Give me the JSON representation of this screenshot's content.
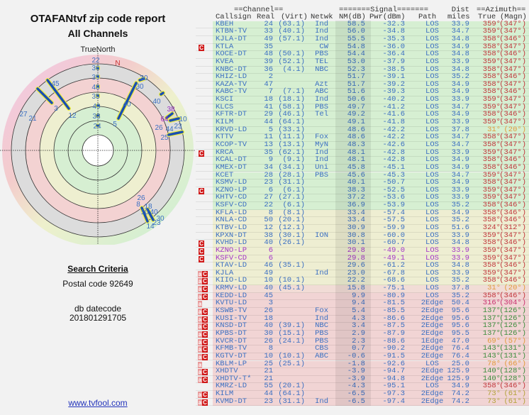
{
  "left": {
    "title": "OTAFANtvf zip code report",
    "subtitle": "All Channels",
    "radar_heading": "TrueNorth",
    "north_marker": "N",
    "radar_labels": [
      "22",
      "36",
      "39",
      "48",
      "35",
      "49",
      "33",
      "24",
      "45",
      "3",
      "12",
      "27",
      "21",
      "30",
      "30",
      "40",
      "5",
      "40",
      "38",
      "64",
      "10",
      "26",
      "44",
      "23",
      "25",
      "26",
      "8",
      "18",
      "10",
      "40",
      "30",
      "23",
      "14"
    ],
    "search_criteria_heading": "Search Criteria",
    "postal_code": "Postal code 92649",
    "db_datecode_label": "db datecode",
    "db_datecode": "201801291705",
    "site_link": "www.tvfool.com"
  },
  "table": {
    "group_headers": {
      "channel": "==Channel==",
      "signal": "=======Signal=======",
      "dist": "Dist",
      "azimuth": "==Azimuth=="
    },
    "columns": {
      "callsign": "Callsign",
      "real": "Real",
      "virt": "(Virt)",
      "netwk": "Netwk",
      "nm": "NM(dB)",
      "pwr": "Pwr(dBm)",
      "path": "Path",
      "miles": "miles",
      "true": "True",
      "magn": "(Magn)"
    },
    "colors": {
      "green_band": "#d6efd2",
      "yellow_band": "#eeeed2",
      "pink_band": "#f1d4d4",
      "text": "#3b6fc2",
      "azimuth_red": "#c0353a",
      "icon_red": "#d01818"
    },
    "rows": [
      {
        "icon": "",
        "call": "KBEH",
        "real": "24",
        "virt": "(63.1)",
        "net": "Ind",
        "nm": "58.5",
        "pwr": "-32.3",
        "path": "LOS",
        "dist": "33.9",
        "tru": "359°",
        "mag": "(347°)",
        "az": "red",
        "band": "g"
      },
      {
        "icon": "",
        "call": "KTBN-TV",
        "real": "33",
        "virt": "(40.1)",
        "net": "Ind",
        "nm": "56.0",
        "pwr": "-34.8",
        "path": "LOS",
        "dist": "34.7",
        "tru": "359°",
        "mag": "(347°)",
        "az": "red",
        "band": "g"
      },
      {
        "icon": "",
        "call": "KJLA-DT",
        "real": "49",
        "virt": "(57.1)",
        "net": "Ind",
        "nm": "55.5",
        "pwr": "-35.3",
        "path": "LOS",
        "dist": "34.8",
        "tru": "358°",
        "mag": "(346°)",
        "az": "red",
        "band": "g"
      },
      {
        "icon": "C",
        "call": "KTLA",
        "real": "35",
        "virt": "",
        "net": "CW",
        "nm": "54.8",
        "pwr": "-36.0",
        "path": "LOS",
        "dist": "34.9",
        "tru": "358°",
        "mag": "(347°)",
        "az": "red",
        "band": "g"
      },
      {
        "icon": "",
        "call": "KOCE-DT",
        "real": "48",
        "virt": "(50.1)",
        "net": "PBS",
        "nm": "54.4",
        "pwr": "-36.4",
        "path": "LOS",
        "dist": "34.8",
        "tru": "358°",
        "mag": "(346°)",
        "az": "red",
        "band": "g"
      },
      {
        "icon": "",
        "call": "KVEA",
        "real": "39",
        "virt": "(52.1)",
        "net": "TEL",
        "nm": "53.0",
        "pwr": "-37.9",
        "path": "LOS",
        "dist": "33.9",
        "tru": "359°",
        "mag": "(347°)",
        "az": "red",
        "band": "g"
      },
      {
        "icon": "",
        "call": "KNBC-DT",
        "real": "36",
        "virt": "(4.1)",
        "net": "NBC",
        "nm": "52.3",
        "pwr": "-38.5",
        "path": "LOS",
        "dist": "34.8",
        "tru": "358°",
        "mag": "(347°)",
        "az": "red",
        "band": "g"
      },
      {
        "icon": "",
        "call": "KHIZ-LD",
        "real": "2",
        "virt": "",
        "net": "",
        "nm": "51.7",
        "pwr": "-39.1",
        "path": "LOS",
        "dist": "35.2",
        "tru": "358°",
        "mag": "(346°)",
        "az": "red",
        "band": "g"
      },
      {
        "icon": "",
        "call": "KAZA-TV",
        "real": "47",
        "virt": "",
        "net": "Azt",
        "nm": "51.7",
        "pwr": "-39.2",
        "path": "LOS",
        "dist": "34.9",
        "tru": "358°",
        "mag": "(347°)",
        "az": "red",
        "band": "g"
      },
      {
        "icon": "",
        "call": "KABC-TV",
        "real": "7",
        "virt": "(7.1)",
        "net": "ABC",
        "nm": "51.6",
        "pwr": "-39.3",
        "path": "LOS",
        "dist": "34.9",
        "tru": "358°",
        "mag": "(346°)",
        "az": "red",
        "band": "g"
      },
      {
        "icon": "",
        "call": "KSCI",
        "real": "18",
        "virt": "(18.1)",
        "net": "Ind",
        "nm": "50.6",
        "pwr": "-40.2",
        "path": "LOS",
        "dist": "33.9",
        "tru": "359°",
        "mag": "(347°)",
        "az": "red",
        "band": "g"
      },
      {
        "icon": "",
        "call": "KLCS",
        "real": "41",
        "virt": "(58.1)",
        "net": "PBS",
        "nm": "49.7",
        "pwr": "-41.2",
        "path": "LOS",
        "dist": "34.7",
        "tru": "359°",
        "mag": "(347°)",
        "az": "red",
        "band": "g"
      },
      {
        "icon": "",
        "call": "KFTR-DT",
        "real": "29",
        "virt": "(46.1)",
        "net": "Tel",
        "nm": "49.2",
        "pwr": "-41.6",
        "path": "LOS",
        "dist": "34.9",
        "tru": "358°",
        "mag": "(346°)",
        "az": "red",
        "band": "g"
      },
      {
        "icon": "",
        "call": "KILM",
        "real": "44",
        "virt": "(64.1)",
        "net": "",
        "nm": "49.1",
        "pwr": "-41.8",
        "path": "LOS",
        "dist": "33.9",
        "tru": "359°",
        "mag": "(347°)",
        "az": "red",
        "band": "g"
      },
      {
        "icon": "",
        "call": "KRVD-LD",
        "real": "5",
        "virt": "(33.1)",
        "net": "",
        "nm": "48.6",
        "pwr": "-42.2",
        "path": "LOS",
        "dist": "37.8",
        "tru": "31°",
        "mag": "(20°)",
        "az": "orange",
        "band": "g"
      },
      {
        "icon": "",
        "call": "KTTV",
        "real": "11",
        "virt": "(11.1)",
        "net": "Fox",
        "nm": "48.6",
        "pwr": "-42.2",
        "path": "LOS",
        "dist": "34.7",
        "tru": "358°",
        "mag": "(347°)",
        "az": "red",
        "band": "g"
      },
      {
        "icon": "",
        "call": "KCOP-TV",
        "real": "13",
        "virt": "(13.1)",
        "net": "MyN",
        "nm": "48.3",
        "pwr": "-42.6",
        "path": "LOS",
        "dist": "34.7",
        "tru": "358°",
        "mag": "(347°)",
        "az": "red",
        "band": "g"
      },
      {
        "icon": "C",
        "call": "KRCA",
        "real": "35",
        "virt": "(62.1)",
        "net": "Ind",
        "nm": "48.1",
        "pwr": "-42.8",
        "path": "LOS",
        "dist": "33.9",
        "tru": "359°",
        "mag": "(347°)",
        "az": "red",
        "band": "g"
      },
      {
        "icon": "",
        "call": "KCAL-DT",
        "real": "9",
        "virt": "(9.1)",
        "net": "Ind",
        "nm": "48.1",
        "pwr": "-42.8",
        "path": "LOS",
        "dist": "34.9",
        "tru": "358°",
        "mag": "(346°)",
        "az": "red",
        "band": "g"
      },
      {
        "icon": "",
        "call": "KMEX-DT",
        "real": "34",
        "virt": "(34.1)",
        "net": "Uni",
        "nm": "45.8",
        "pwr": "-45.1",
        "path": "LOS",
        "dist": "34.9",
        "tru": "358°",
        "mag": "(346°)",
        "az": "red",
        "band": "g"
      },
      {
        "icon": "",
        "call": "KCET",
        "real": "28",
        "virt": "(28.1)",
        "net": "PBS",
        "nm": "45.6",
        "pwr": "-45.3",
        "path": "LOS",
        "dist": "34.7",
        "tru": "359°",
        "mag": "(347°)",
        "az": "red",
        "band": "g"
      },
      {
        "icon": "",
        "call": "KSMV-LD",
        "real": "23",
        "virt": "(31.1)",
        "net": "",
        "nm": "40.1",
        "pwr": "-50.7",
        "path": "LOS",
        "dist": "34.9",
        "tru": "358°",
        "mag": "(347°)",
        "az": "red",
        "band": "g"
      },
      {
        "icon": "C",
        "call": "KZNO-LP",
        "real": "6",
        "virt": "(6.1)",
        "net": "",
        "nm": "38.3",
        "pwr": "-52.5",
        "path": "LOS",
        "dist": "33.9",
        "tru": "359°",
        "mag": "(347°)",
        "az": "red",
        "band": "g"
      },
      {
        "icon": "",
        "call": "KHTV-CD",
        "real": "27",
        "virt": "(27.1)",
        "net": "",
        "nm": "37.2",
        "pwr": "-53.6",
        "path": "LOS",
        "dist": "33.9",
        "tru": "359°",
        "mag": "(347°)",
        "az": "red",
        "band": "g"
      },
      {
        "icon": "",
        "call": "KSFV-CD",
        "real": "22",
        "virt": "(6.1)",
        "net": "",
        "nm": "36.9",
        "pwr": "-53.9",
        "path": "LOS",
        "dist": "35.2",
        "tru": "358°",
        "mag": "(346°)",
        "az": "red",
        "band": "g"
      },
      {
        "icon": "",
        "call": "KFLA-LD",
        "real": "8",
        "virt": "(8.1)",
        "net": "",
        "nm": "33.4",
        "pwr": "-57.4",
        "path": "LOS",
        "dist": "34.9",
        "tru": "358°",
        "mag": "(346°)",
        "az": "red",
        "band": "y"
      },
      {
        "icon": "",
        "call": "KNLA-CD",
        "real": "50",
        "virt": "(20.1)",
        "net": "",
        "nm": "33.4",
        "pwr": "-57.5",
        "path": "LOS",
        "dist": "35.2",
        "tru": "358°",
        "mag": "(346°)",
        "az": "red",
        "band": "y"
      },
      {
        "icon": "",
        "call": "KTBV-LD",
        "real": "12",
        "virt": "(12.1)",
        "net": "",
        "nm": "30.9",
        "pwr": "-59.9",
        "path": "LOS",
        "dist": "51.6",
        "tru": "324°",
        "mag": "(312°)",
        "az": "red",
        "band": "y"
      },
      {
        "icon": "",
        "call": "KPXN-DT",
        "real": "38",
        "virt": "(30.1)",
        "net": "ION",
        "nm": "30.8",
        "pwr": "-60.0",
        "path": "LOS",
        "dist": "33.9",
        "tru": "359°",
        "mag": "(347°)",
        "az": "red",
        "band": "y"
      },
      {
        "icon": "C",
        "call": "KVHD-LD",
        "real": "40",
        "virt": "(26.1)",
        "net": "",
        "nm": "30.1",
        "pwr": "-60.7",
        "path": "LOS",
        "dist": "34.8",
        "tru": "358°",
        "mag": "(346°)",
        "az": "red",
        "band": "y"
      },
      {
        "icon": "C",
        "call": "KZNO-LP",
        "real": "6",
        "virt": "",
        "net": "",
        "nm": "29.8",
        "pwr": "-49.0",
        "path": "LOS",
        "dist": "33.9",
        "tru": "359°",
        "mag": "(347°)",
        "az": "red",
        "band": "y",
        "purple": true
      },
      {
        "icon": "C",
        "call": "KSFV-CD",
        "real": "6",
        "virt": "",
        "net": "",
        "nm": "29.8",
        "pwr": "-49.1",
        "path": "LOS",
        "dist": "33.9",
        "tru": "359°",
        "mag": "(347°)",
        "az": "red",
        "band": "y",
        "purple": true
      },
      {
        "icon": "",
        "call": "KTAV-LD",
        "real": "46",
        "virt": "(35.1)",
        "net": "",
        "nm": "29.6",
        "pwr": "-61.2",
        "path": "LOS",
        "dist": "34.8",
        "tru": "358°",
        "mag": "(346°)",
        "az": "red",
        "band": "y"
      },
      {
        "icon": "aC",
        "call": "KJLA",
        "real": "49",
        "virt": "",
        "net": "Ind",
        "nm": "23.0",
        "pwr": "-67.8",
        "path": "LOS",
        "dist": "33.9",
        "tru": "359°",
        "mag": "(347°)",
        "az": "red",
        "band": "y"
      },
      {
        "icon": "aC",
        "call": "KIIO-LD",
        "real": "10",
        "virt": "(10.1)",
        "net": "",
        "nm": "22.2",
        "pwr": "-68.6",
        "path": "LOS",
        "dist": "35.2",
        "tru": "358°",
        "mag": "(346°)",
        "az": "red",
        "band": "y"
      },
      {
        "icon": "aC",
        "call": "KRMV-LD",
        "real": "40",
        "virt": "(45.1)",
        "net": "",
        "nm": "15.8",
        "pwr": "-75.1",
        "path": "LOS",
        "dist": "37.8",
        "tru": "31°",
        "mag": "(20°)",
        "az": "orange",
        "band": "py"
      },
      {
        "icon": "aC",
        "call": "KEDD-LD",
        "real": "45",
        "virt": "",
        "net": "",
        "nm": "9.9",
        "pwr": "-80.9",
        "path": "LOS",
        "dist": "35.2",
        "tru": "358°",
        "mag": "(346°)",
        "az": "red",
        "band": "p"
      },
      {
        "icon": "a",
        "call": "KVTU-LD",
        "real": "3",
        "virt": "",
        "net": "",
        "nm": "9.4",
        "pwr": "-81.5",
        "path": "2Edge",
        "dist": "50.4",
        "tru": "316°",
        "mag": "(304°)",
        "az": "magenta",
        "band": "p"
      },
      {
        "icon": "aC",
        "call": "KSWB-TV",
        "real": "26",
        "virt": "",
        "net": "Fox",
        "nm": "5.4",
        "pwr": "-85.5",
        "path": "2Edge",
        "dist": "95.6",
        "tru": "137°",
        "mag": "(126°)",
        "az": "green",
        "band": "p"
      },
      {
        "icon": "aC",
        "call": "KUSI-TV",
        "real": "18",
        "virt": "",
        "net": "Ind",
        "nm": "4.3",
        "pwr": "-86.6",
        "path": "2Edge",
        "dist": "95.6",
        "tru": "137°",
        "mag": "(126°)",
        "az": "green",
        "band": "p"
      },
      {
        "icon": "aC",
        "call": "KNSD-DT",
        "real": "40",
        "virt": "(39.1)",
        "net": "NBC",
        "nm": "3.4",
        "pwr": "-87.5",
        "path": "2Edge",
        "dist": "95.6",
        "tru": "137°",
        "mag": "(126°)",
        "az": "green",
        "band": "p"
      },
      {
        "icon": "aC",
        "call": "KPBS-DT",
        "real": "30",
        "virt": "(15.1)",
        "net": "PBS",
        "nm": "2.9",
        "pwr": "-87.9",
        "path": "2Edge",
        "dist": "95.5",
        "tru": "137°",
        "mag": "(126°)",
        "az": "green",
        "band": "p"
      },
      {
        "icon": "aC",
        "call": "KVCR-DT",
        "real": "26",
        "virt": "(24.1)",
        "net": "PBS",
        "nm": "2.3",
        "pwr": "-88.6",
        "path": "1Edge",
        "dist": "47.0",
        "tru": "69°",
        "mag": "(57°)",
        "az": "orange",
        "band": "p"
      },
      {
        "icon": "aC",
        "call": "KFMB-TV",
        "real": "8",
        "virt": "",
        "net": "CBS",
        "nm": "0.7",
        "pwr": "-90.2",
        "path": "2Edge",
        "dist": "76.4",
        "tru": "143°",
        "mag": "(131°)",
        "az": "green",
        "band": "p"
      },
      {
        "icon": "aC",
        "call": "KGTV-DT",
        "real": "10",
        "virt": "(10.1)",
        "net": "ABC",
        "nm": "-0.6",
        "pwr": "-91.5",
        "path": "2Edge",
        "dist": "76.4",
        "tru": "143°",
        "mag": "(131°)",
        "az": "green",
        "band": "p"
      },
      {
        "icon": "a",
        "call": "KBLM-LP",
        "real": "25",
        "virt": "(25.1)",
        "net": "",
        "nm": "-1.8",
        "pwr": "-92.6",
        "path": "LOS",
        "dist": "25.0",
        "tru": "78°",
        "mag": "(66°)",
        "az": "orange",
        "band": "p"
      },
      {
        "icon": "aC",
        "call": "XHDTV",
        "real": "21",
        "virt": "",
        "net": "",
        "nm": "-3.9",
        "pwr": "-94.7",
        "path": "2Edge",
        "dist": "125.9",
        "tru": "140°",
        "mag": "(128°)",
        "az": "green",
        "band": "p"
      },
      {
        "icon": "aC",
        "call": "XHDTV-T*",
        "real": "21",
        "virt": "",
        "net": "",
        "nm": "-3.9",
        "pwr": "-94.8",
        "path": "2Edge",
        "dist": "125.9",
        "tru": "140°",
        "mag": "(128°)",
        "az": "green",
        "band": "p"
      },
      {
        "icon": "",
        "call": "KMRZ-LD",
        "real": "55",
        "virt": "(20.1)",
        "net": "",
        "nm": "-4.3",
        "pwr": "-95.1",
        "path": "LOS",
        "dist": "34.9",
        "tru": "358°",
        "mag": "(346°)",
        "az": "red",
        "band": "p"
      },
      {
        "icon": "aC",
        "call": "KILM",
        "real": "44",
        "virt": "(64.1)",
        "net": "",
        "nm": "-6.5",
        "pwr": "-97.3",
        "path": "2Edge",
        "dist": "74.2",
        "tru": "73°",
        "mag": "(61°)",
        "az": "olive",
        "band": "p"
      },
      {
        "icon": "aC",
        "call": "KVMD-DT",
        "real": "23",
        "virt": "(31.1)",
        "net": "Ind",
        "nm": "-6.5",
        "pwr": "-97.4",
        "path": "2Edge",
        "dist": "74.2",
        "tru": "73°",
        "mag": "(61°)",
        "az": "olive",
        "band": "p"
      }
    ]
  }
}
